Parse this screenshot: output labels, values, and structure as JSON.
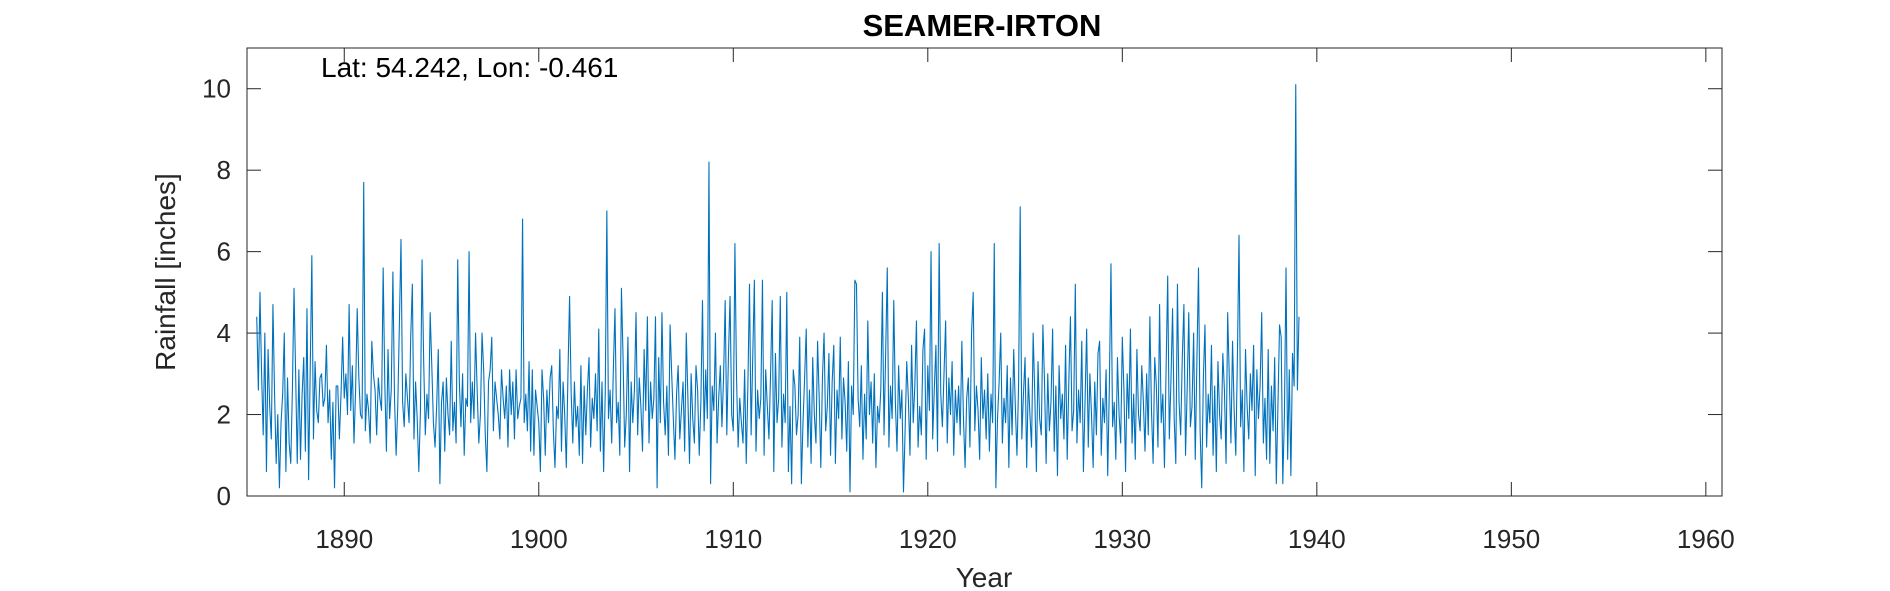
{
  "chart_data": {
    "type": "line",
    "title": "SEAMER-IRTON",
    "annotation": "Lat: 54.242, Lon: -0.461",
    "xlabel": "Year",
    "ylabel": "Rainfall [inches]",
    "xlim": [
      1885.0,
      1960.83
    ],
    "ylim": [
      0,
      11
    ],
    "xticks": [
      1890,
      1900,
      1910,
      1920,
      1930,
      1940,
      1950,
      1960
    ],
    "yticks": [
      0,
      2,
      4,
      6,
      8,
      10
    ],
    "grid": false,
    "series": [
      {
        "name": "",
        "color": "#0072BD",
        "x_start": 1885.5,
        "x_step": 0.0833333,
        "values": [
          4.4,
          2.6,
          5.0,
          3.0,
          1.5,
          4.0,
          0.6,
          3.6,
          2.2,
          1.4,
          4.7,
          2.5,
          0.8,
          2.0,
          0.2,
          1.8,
          2.5,
          4.0,
          0.6,
          2.9,
          1.3,
          0.8,
          2.6,
          5.1,
          3.0,
          0.8,
          3.1,
          0.9,
          2.5,
          3.4,
          1.1,
          4.6,
          0.4,
          3.1,
          5.9,
          1.4,
          3.3,
          2.1,
          1.8,
          2.9,
          3.0,
          2.2,
          2.4,
          3.7,
          1.8,
          2.6,
          0.9,
          2.3,
          0.2,
          2.7,
          2.7,
          1.4,
          2.5,
          3.9,
          2.4,
          3.0,
          2.0,
          4.7,
          2.1,
          3.2,
          1.3,
          2.6,
          4.6,
          2.9,
          2.0,
          1.9,
          7.7,
          1.6,
          2.5,
          2.1,
          1.3,
          3.8,
          3.0,
          2.6,
          1.5,
          2.9,
          2.4,
          2.1,
          5.6,
          2.8,
          1.1,
          3.6,
          1.9,
          2.6,
          5.5,
          2.4,
          1.0,
          2.2,
          4.2,
          6.3,
          2.3,
          1.7,
          3.0,
          2.4,
          1.8,
          3.9,
          5.2,
          1.4,
          2.8,
          1.9,
          0.6,
          2.1,
          5.8,
          3.3,
          1.5,
          2.5,
          1.9,
          4.5,
          3.2,
          1.8,
          1.2,
          2.2,
          3.6,
          0.3,
          2.3,
          2.8,
          1.1,
          2.9,
          2.0,
          1.5,
          3.8,
          1.6,
          2.3,
          1.3,
          5.8,
          2.8,
          1.7,
          3.0,
          1.0,
          2.4,
          2.2,
          6.0,
          1.8,
          2.8,
          1.9,
          4.0,
          2.6,
          1.3,
          2.0,
          4.0,
          3.1,
          1.5,
          0.6,
          2.8,
          3.1,
          3.9,
          1.6,
          2.8,
          2.4,
          2.0,
          1.4,
          3.1,
          2.4,
          1.9,
          2.7,
          1.2,
          3.1,
          2.0,
          2.8,
          1.4,
          3.1,
          1.9,
          2.2,
          2.4,
          6.8,
          1.8,
          2.5,
          1.6,
          3.3,
          1.1,
          3.1,
          1.0,
          2.6,
          2.2,
          1.8,
          0.6,
          3.1,
          2.4,
          1.0,
          2.6,
          1.8,
          2.9,
          3.2,
          1.6,
          0.7,
          2.2,
          1.9,
          3.6,
          1.1,
          2.8,
          2.0,
          0.7,
          3.0,
          4.9,
          2.5,
          1.3,
          2.8,
          1.7,
          2.2,
          1.0,
          3.2,
          0.8,
          2.7,
          1.5,
          2.6,
          3.4,
          1.2,
          2.4,
          1.9,
          3.0,
          1.6,
          4.1,
          1.1,
          2.8,
          0.6,
          2.5,
          7.0,
          1.9,
          2.6,
          1.3,
          3.1,
          4.6,
          1.8,
          2.3,
          1.0,
          5.1,
          3.4,
          1.2,
          2.0,
          3.9,
          0.6,
          2.8,
          1.8,
          2.6,
          4.5,
          1.5,
          2.9,
          2.2,
          1.1,
          3.6,
          2.1,
          4.4,
          1.3,
          2.8,
          1.9,
          2.4,
          4.4,
          0.2,
          3.4,
          1.8,
          4.5,
          2.3,
          1.5,
          2.7,
          1.0,
          4.2,
          3.0,
          1.9,
          0.9,
          2.5,
          3.2,
          1.4,
          2.1,
          2.8,
          1.1,
          4.0,
          2.4,
          0.8,
          3.0,
          1.9,
          1.3,
          3.2,
          2.6,
          1.0,
          2.3,
          4.8,
          1.6,
          3.1,
          1.9,
          8.2,
          0.3,
          2.7,
          2.1,
          4.0,
          1.3,
          2.4,
          3.2,
          1.7,
          2.9,
          4.8,
          1.5,
          3.4,
          4.9,
          2.0,
          1.6,
          6.2,
          2.9,
          1.2,
          2.4,
          1.8,
          1.3,
          3.1,
          0.8,
          2.7,
          5.2,
          1.5,
          3.4,
          5.3,
          1.1,
          2.6,
          1.9,
          2.4,
          5.3,
          1.0,
          3.1,
          2.2,
          1.4,
          3.0,
          4.8,
          0.6,
          3.5,
          1.8,
          2.4,
          4.9,
          1.2,
          2.5,
          1.8,
          5.0,
          0.6,
          2.2,
          0.3,
          3.1,
          2.7,
          1.5,
          2.0,
          3.9,
          0.3,
          1.8,
          2.9,
          4.1,
          1.2,
          2.6,
          0.8,
          3.4,
          2.0,
          1.3,
          3.8,
          2.4,
          0.7,
          2.9,
          4.0,
          1.6,
          2.2,
          3.5,
          1.0,
          2.8,
          3.7,
          0.8,
          2.6,
          1.9,
          3.9,
          1.4,
          2.9,
          2.3,
          1.1,
          3.3,
          0.1,
          2.7,
          2.0,
          5.3,
          5.2,
          2.4,
          1.7,
          3.2,
          0.9,
          2.5,
          1.4,
          4.3,
          2.0,
          2.8,
          1.3,
          3.0,
          0.7,
          2.2,
          1.8,
          2.6,
          5.0,
          1.5,
          3.5,
          5.6,
          1.2,
          2.7,
          1.9,
          4.8,
          2.3,
          1.1,
          3.2,
          1.9,
          2.6,
          0.1,
          1.6,
          3.3,
          2.4,
          1.0,
          3.7,
          1.8,
          2.7,
          4.3,
          1.2,
          2.2,
          1.5,
          3.6,
          4.1,
          0.9,
          3.2,
          2.1,
          6.0,
          1.4,
          2.6,
          3.7,
          1.1,
          6.2,
          2.5,
          1.7,
          3.0,
          4.3,
          1.3,
          2.9,
          2.0,
          3.3,
          1.0,
          2.6,
          1.8,
          2.7,
          1.5,
          3.8,
          1.9,
          0.7,
          2.4,
          2.9,
          1.2,
          4.0,
          5.0,
          1.6,
          2.7,
          2.1,
          0.9,
          3.4,
          1.9,
          2.6,
          1.4,
          3.0,
          1.1,
          2.5,
          1.8,
          6.2,
          0.2,
          1.9,
          2.8,
          4.0,
          1.3,
          2.4,
          1.8,
          3.2,
          0.7,
          2.9,
          1.5,
          3.6,
          2.2,
          1.0,
          2.7,
          7.1,
          1.4,
          2.5,
          3.4,
          0.7,
          2.9,
          2.0,
          1.2,
          4.0,
          2.5,
          0.6,
          3.3,
          1.9,
          1.5,
          4.2,
          2.8,
          0.8,
          3.0,
          1.6,
          2.3,
          4.1,
          1.1,
          2.7,
          0.5,
          3.2,
          1.9,
          2.5,
          1.4,
          3.7,
          0.9,
          2.8,
          4.4,
          1.6,
          2.1,
          5.2,
          1.3,
          2.6,
          1.8,
          3.8,
          0.6,
          2.3,
          4.1,
          1.2,
          3.0,
          2.0,
          0.7,
          2.8,
          1.5,
          3.5,
          3.8,
          1.0,
          2.4,
          1.8,
          3.1,
          0.5,
          2.7,
          5.7,
          1.7,
          2.3,
          0.9,
          3.4,
          2.0,
          1.3,
          3.9,
          2.6,
          0.6,
          3.0,
          1.9,
          4.1,
          1.3,
          2.5,
          0.9,
          3.6,
          2.0,
          1.6,
          3.2,
          2.3,
          1.1,
          3.0,
          1.5,
          4.4,
          2.1,
          0.8,
          3.4,
          2.7,
          1.2,
          4.7,
          1.8,
          2.5,
          0.7,
          3.1,
          5.4,
          1.4,
          2.8,
          4.6,
          1.9,
          0.8,
          5.2,
          2.3,
          1.5,
          3.4,
          4.7,
          1.0,
          2.6,
          4.5,
          1.7,
          2.2,
          4.0,
          0.9,
          3.3,
          5.6,
          1.6,
          0.2,
          2.9,
          4.2,
          1.2,
          2.5,
          1.8,
          3.7,
          1.0,
          2.7,
          0.6,
          3.3,
          2.0,
          1.4,
          3.5,
          2.6,
          0.8,
          4.5,
          2.9,
          1.3,
          3.8,
          2.1,
          1.0,
          3.4,
          6.4,
          1.7,
          2.6,
          0.6,
          3.6,
          2.2,
          1.4,
          3.0,
          2.1,
          3.7,
          0.5,
          3.1,
          1.9,
          2.7,
          4.5,
          1.3,
          2.4,
          0.9,
          3.6,
          0.8,
          2.7,
          1.6,
          3.4,
          0.3,
          2.2,
          4.2,
          3.9,
          0.3,
          2.0,
          5.6,
          0.9,
          3.1,
          0.5,
          3.5,
          2.7,
          10.1,
          2.6,
          4.4
        ]
      }
    ]
  }
}
